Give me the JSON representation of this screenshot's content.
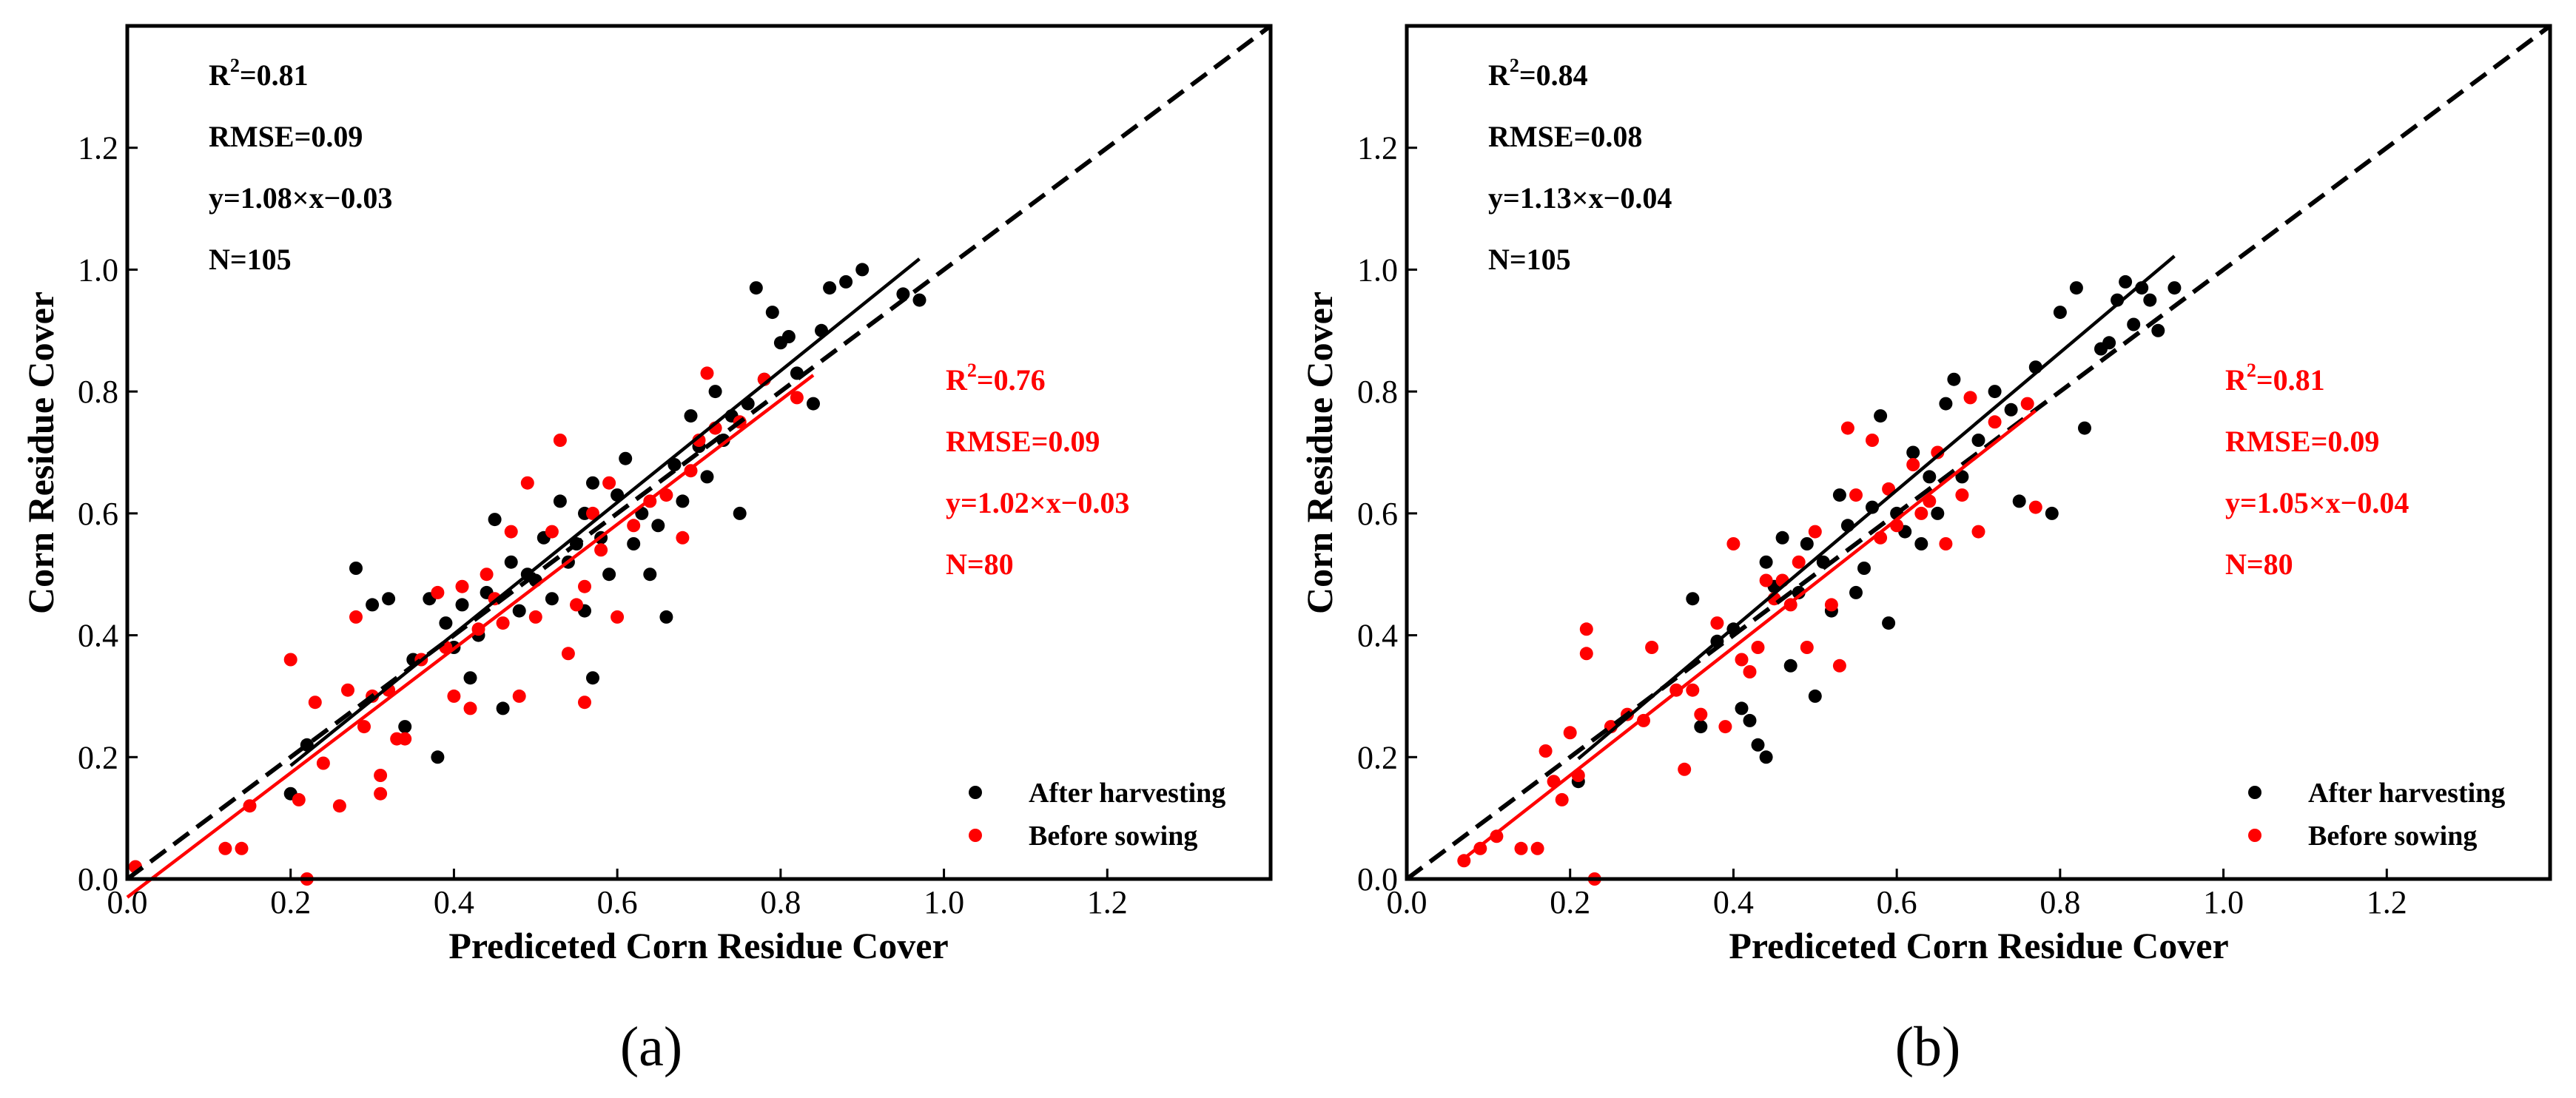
{
  "colors": {
    "after": "#000000",
    "before": "#ff0000",
    "one_to_one": "#000000"
  },
  "chart_data": [
    {
      "type": "scatter",
      "panel_label": "(a)",
      "xlabel": "Prediceted Corn Residue Cover",
      "ylabel": "Corn Residue Cover",
      "xlim": [
        0,
        1.4
      ],
      "ylim": [
        0,
        1.4
      ],
      "xticks": [
        "0.0",
        "0.2",
        "0.4",
        "0.6",
        "0.8",
        "1.0",
        "1.2"
      ],
      "yticks": [
        "0.0",
        "0.2",
        "0.4",
        "0.6",
        "0.8",
        "1.0",
        "1.2"
      ],
      "grid": false,
      "legend_position": "bottom-right",
      "one_to_one_line": true,
      "stats": [
        {
          "series": "after",
          "r2_label": "R",
          "r2_sup": "2",
          "r2_value": "=0.81",
          "rmse": "RMSE=0.09",
          "equation": "y=1.08×x−0.03",
          "n": "N=105"
        },
        {
          "series": "before",
          "r2_label": "R",
          "r2_sup": "2",
          "r2_value": "=0.76",
          "rmse": "RMSE=0.09",
          "equation": "y=1.02×x−0.03",
          "n": "N=80"
        }
      ],
      "series": [
        {
          "name": "After harvesting",
          "key": "after",
          "fit": {
            "slope": 1.08,
            "intercept": -0.03,
            "x_range": [
              0.2,
              0.97
            ]
          },
          "points": [
            [
              0.2,
              0.14
            ],
            [
              0.22,
              0.22
            ],
            [
              0.28,
              0.51
            ],
            [
              0.3,
              0.45
            ],
            [
              0.32,
              0.46
            ],
            [
              0.34,
              0.25
            ],
            [
              0.35,
              0.36
            ],
            [
              0.37,
              0.46
            ],
            [
              0.38,
              0.2
            ],
            [
              0.39,
              0.42
            ],
            [
              0.4,
              0.38
            ],
            [
              0.41,
              0.45
            ],
            [
              0.42,
              0.33
            ],
            [
              0.43,
              0.4
            ],
            [
              0.44,
              0.47
            ],
            [
              0.45,
              0.59
            ],
            [
              0.46,
              0.28
            ],
            [
              0.47,
              0.52
            ],
            [
              0.48,
              0.44
            ],
            [
              0.49,
              0.5
            ],
            [
              0.5,
              0.49
            ],
            [
              0.51,
              0.56
            ],
            [
              0.52,
              0.46
            ],
            [
              0.53,
              0.62
            ],
            [
              0.54,
              0.52
            ],
            [
              0.55,
              0.55
            ],
            [
              0.56,
              0.6
            ],
            [
              0.56,
              0.44
            ],
            [
              0.57,
              0.65
            ],
            [
              0.57,
              0.33
            ],
            [
              0.58,
              0.56
            ],
            [
              0.59,
              0.5
            ],
            [
              0.6,
              0.63
            ],
            [
              0.61,
              0.69
            ],
            [
              0.62,
              0.55
            ],
            [
              0.63,
              0.6
            ],
            [
              0.64,
              0.5
            ],
            [
              0.65,
              0.58
            ],
            [
              0.66,
              0.43
            ],
            [
              0.67,
              0.68
            ],
            [
              0.68,
              0.62
            ],
            [
              0.69,
              0.76
            ],
            [
              0.7,
              0.71
            ],
            [
              0.71,
              0.66
            ],
            [
              0.72,
              0.8
            ],
            [
              0.73,
              0.72
            ],
            [
              0.74,
              0.76
            ],
            [
              0.75,
              0.6
            ],
            [
              0.76,
              0.78
            ],
            [
              0.77,
              0.97
            ],
            [
              0.78,
              0.82
            ],
            [
              0.79,
              0.93
            ],
            [
              0.8,
              0.88
            ],
            [
              0.81,
              0.89
            ],
            [
              0.82,
              0.83
            ],
            [
              0.84,
              0.78
            ],
            [
              0.85,
              0.9
            ],
            [
              0.86,
              0.97
            ],
            [
              0.88,
              0.98
            ],
            [
              0.9,
              1.0
            ],
            [
              0.95,
              0.96
            ],
            [
              0.97,
              0.95
            ]
          ]
        },
        {
          "name": "Before sowing",
          "key": "before",
          "fit": {
            "slope": 1.02,
            "intercept": -0.03,
            "x_range": [
              0.0,
              0.84
            ]
          },
          "points": [
            [
              0.01,
              0.02
            ],
            [
              0.12,
              0.05
            ],
            [
              0.14,
              0.05
            ],
            [
              0.15,
              0.12
            ],
            [
              0.2,
              0.36
            ],
            [
              0.21,
              0.13
            ],
            [
              0.22,
              0.0
            ],
            [
              0.23,
              0.29
            ],
            [
              0.24,
              0.19
            ],
            [
              0.26,
              0.12
            ],
            [
              0.27,
              0.31
            ],
            [
              0.28,
              0.43
            ],
            [
              0.29,
              0.25
            ],
            [
              0.3,
              0.3
            ],
            [
              0.31,
              0.17
            ],
            [
              0.31,
              0.14
            ],
            [
              0.32,
              0.31
            ],
            [
              0.33,
              0.23
            ],
            [
              0.34,
              0.23
            ],
            [
              0.36,
              0.36
            ],
            [
              0.38,
              0.47
            ],
            [
              0.39,
              0.38
            ],
            [
              0.4,
              0.3
            ],
            [
              0.41,
              0.48
            ],
            [
              0.42,
              0.28
            ],
            [
              0.43,
              0.41
            ],
            [
              0.44,
              0.5
            ],
            [
              0.45,
              0.46
            ],
            [
              0.46,
              0.42
            ],
            [
              0.47,
              0.57
            ],
            [
              0.48,
              0.3
            ],
            [
              0.49,
              0.65
            ],
            [
              0.5,
              0.43
            ],
            [
              0.52,
              0.57
            ],
            [
              0.53,
              0.72
            ],
            [
              0.54,
              0.37
            ],
            [
              0.55,
              0.45
            ],
            [
              0.56,
              0.48
            ],
            [
              0.56,
              0.29
            ],
            [
              0.57,
              0.6
            ],
            [
              0.58,
              0.54
            ],
            [
              0.59,
              0.65
            ],
            [
              0.6,
              0.43
            ],
            [
              0.62,
              0.58
            ],
            [
              0.64,
              0.62
            ],
            [
              0.66,
              0.63
            ],
            [
              0.68,
              0.56
            ],
            [
              0.69,
              0.67
            ],
            [
              0.7,
              0.72
            ],
            [
              0.71,
              0.83
            ],
            [
              0.72,
              0.74
            ],
            [
              0.75,
              0.75
            ],
            [
              0.78,
              0.82
            ],
            [
              0.82,
              0.79
            ]
          ]
        }
      ]
    },
    {
      "type": "scatter",
      "panel_label": "(b)",
      "xlabel": "Prediceted Corn Residue Cover",
      "ylabel": "Corn Residue Cover",
      "xlim": [
        0,
        1.4
      ],
      "ylim": [
        0,
        1.4
      ],
      "xticks": [
        "0.0",
        "0.2",
        "0.4",
        "0.6",
        "0.8",
        "1.0",
        "1.2"
      ],
      "yticks": [
        "0.0",
        "0.2",
        "0.4",
        "0.6",
        "0.8",
        "1.0",
        "1.2"
      ],
      "grid": false,
      "legend_position": "bottom-right",
      "one_to_one_line": true,
      "stats": [
        {
          "series": "after",
          "r2_label": "R",
          "r2_sup": "2",
          "r2_value": "=0.84",
          "rmse": "RMSE=0.08",
          "equation": "y=1.13×x−0.04",
          "n": "N=105"
        },
        {
          "series": "before",
          "r2_label": "R",
          "r2_sup": "2",
          "r2_value": "=0.81",
          "rmse": "RMSE=0.09",
          "equation": "y=1.05×x−0.04",
          "n": "N=80"
        }
      ],
      "series": [
        {
          "name": "After harvesting",
          "key": "after",
          "fit": {
            "slope": 1.13,
            "intercept": -0.04,
            "x_range": [
              0.21,
              0.94
            ]
          },
          "points": [
            [
              0.21,
              0.16
            ],
            [
              0.35,
              0.46
            ],
            [
              0.36,
              0.25
            ],
            [
              0.38,
              0.39
            ],
            [
              0.4,
              0.41
            ],
            [
              0.41,
              0.28
            ],
            [
              0.42,
              0.26
            ],
            [
              0.43,
              0.22
            ],
            [
              0.44,
              0.2
            ],
            [
              0.44,
              0.52
            ],
            [
              0.45,
              0.48
            ],
            [
              0.46,
              0.56
            ],
            [
              0.47,
              0.35
            ],
            [
              0.48,
              0.47
            ],
            [
              0.49,
              0.55
            ],
            [
              0.5,
              0.3
            ],
            [
              0.51,
              0.52
            ],
            [
              0.52,
              0.44
            ],
            [
              0.53,
              0.63
            ],
            [
              0.54,
              0.58
            ],
            [
              0.55,
              0.47
            ],
            [
              0.56,
              0.51
            ],
            [
              0.57,
              0.61
            ],
            [
              0.58,
              0.76
            ],
            [
              0.59,
              0.42
            ],
            [
              0.6,
              0.6
            ],
            [
              0.61,
              0.57
            ],
            [
              0.62,
              0.7
            ],
            [
              0.63,
              0.55
            ],
            [
              0.64,
              0.66
            ],
            [
              0.65,
              0.6
            ],
            [
              0.66,
              0.78
            ],
            [
              0.67,
              0.82
            ],
            [
              0.68,
              0.66
            ],
            [
              0.7,
              0.72
            ],
            [
              0.72,
              0.8
            ],
            [
              0.74,
              0.77
            ],
            [
              0.75,
              0.62
            ],
            [
              0.77,
              0.84
            ],
            [
              0.79,
              0.6
            ],
            [
              0.8,
              0.93
            ],
            [
              0.82,
              0.97
            ],
            [
              0.83,
              0.74
            ],
            [
              0.85,
              0.87
            ],
            [
              0.86,
              0.88
            ],
            [
              0.87,
              0.95
            ],
            [
              0.88,
              0.98
            ],
            [
              0.89,
              0.91
            ],
            [
              0.9,
              0.97
            ],
            [
              0.91,
              0.95
            ],
            [
              0.92,
              0.9
            ],
            [
              0.94,
              0.97
            ]
          ]
        },
        {
          "name": "Before sowing",
          "key": "before",
          "fit": {
            "slope": 1.05,
            "intercept": -0.04,
            "x_range": [
              0.07,
              0.77
            ]
          },
          "points": [
            [
              0.07,
              0.03
            ],
            [
              0.09,
              0.05
            ],
            [
              0.11,
              0.07
            ],
            [
              0.14,
              0.05
            ],
            [
              0.16,
              0.05
            ],
            [
              0.17,
              0.21
            ],
            [
              0.18,
              0.16
            ],
            [
              0.19,
              0.13
            ],
            [
              0.2,
              0.24
            ],
            [
              0.21,
              0.17
            ],
            [
              0.22,
              0.41
            ],
            [
              0.22,
              0.37
            ],
            [
              0.23,
              0.0
            ],
            [
              0.25,
              0.25
            ],
            [
              0.27,
              0.27
            ],
            [
              0.29,
              0.26
            ],
            [
              0.3,
              0.38
            ],
            [
              0.33,
              0.31
            ],
            [
              0.34,
              0.18
            ],
            [
              0.35,
              0.31
            ],
            [
              0.36,
              0.27
            ],
            [
              0.38,
              0.42
            ],
            [
              0.39,
              0.25
            ],
            [
              0.4,
              0.55
            ],
            [
              0.41,
              0.36
            ],
            [
              0.42,
              0.34
            ],
            [
              0.43,
              0.38
            ],
            [
              0.44,
              0.49
            ],
            [
              0.45,
              0.46
            ],
            [
              0.46,
              0.49
            ],
            [
              0.47,
              0.45
            ],
            [
              0.48,
              0.52
            ],
            [
              0.49,
              0.38
            ],
            [
              0.5,
              0.57
            ],
            [
              0.52,
              0.45
            ],
            [
              0.53,
              0.35
            ],
            [
              0.54,
              0.74
            ],
            [
              0.55,
              0.63
            ],
            [
              0.57,
              0.72
            ],
            [
              0.58,
              0.56
            ],
            [
              0.59,
              0.64
            ],
            [
              0.6,
              0.58
            ],
            [
              0.62,
              0.68
            ],
            [
              0.63,
              0.6
            ],
            [
              0.64,
              0.62
            ],
            [
              0.65,
              0.7
            ],
            [
              0.66,
              0.55
            ],
            [
              0.68,
              0.63
            ],
            [
              0.69,
              0.79
            ],
            [
              0.7,
              0.57
            ],
            [
              0.72,
              0.75
            ],
            [
              0.76,
              0.78
            ],
            [
              0.77,
              0.61
            ]
          ]
        }
      ]
    }
  ]
}
